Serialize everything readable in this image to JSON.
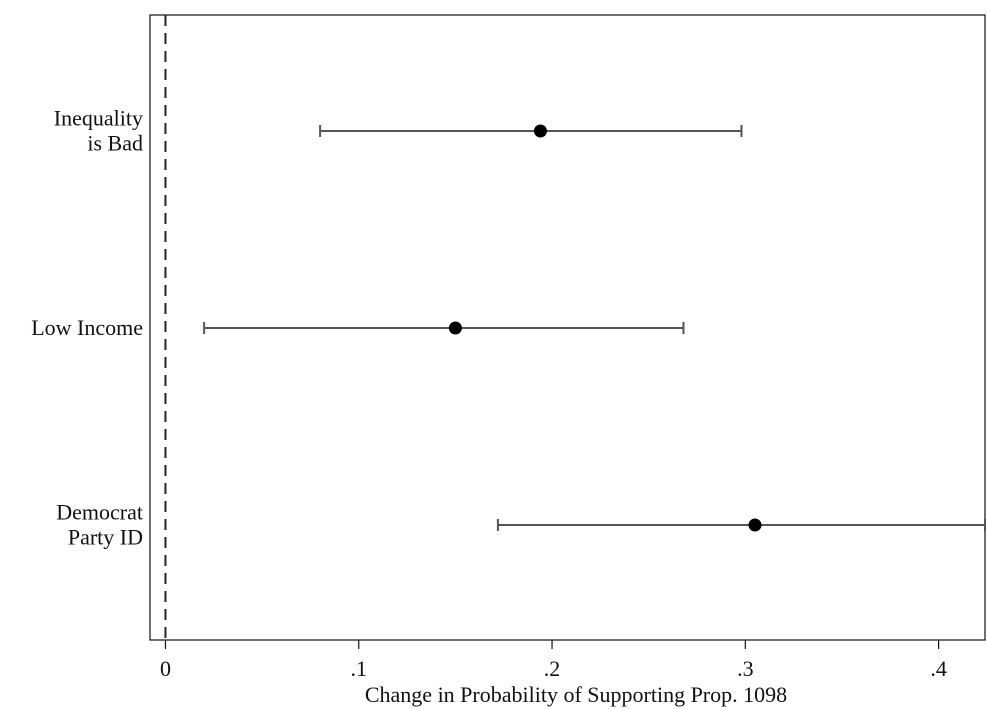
{
  "chart_data": {
    "type": "scatter",
    "subtype": "coefficient-plot",
    "xlabel": "Change in Probability of Supporting Prop. 1098",
    "xlim": [
      -0.008,
      0.424
    ],
    "xticks": [
      {
        "value": 0,
        "label": "0"
      },
      {
        "value": 0.1,
        "label": ".1"
      },
      {
        "value": 0.2,
        "label": ".2"
      },
      {
        "value": 0.3,
        "label": ".3"
      },
      {
        "value": 0.4,
        "label": ".4"
      }
    ],
    "reference_line": {
      "x": 0,
      "style": "dashed"
    },
    "grid": false,
    "legend": "none",
    "categories": [
      {
        "lines": [
          "Inequality",
          "is Bad"
        ],
        "estimate": 0.194,
        "ci_low": 0.08,
        "ci_high": 0.298
      },
      {
        "lines": [
          "Low Income"
        ],
        "estimate": 0.15,
        "ci_low": 0.02,
        "ci_high": 0.268
      },
      {
        "lines": [
          "Democrat",
          "Party ID"
        ],
        "estimate": 0.305,
        "ci_low": 0.172,
        "ci_high": 0.424
      }
    ],
    "colors": {
      "point": "#000000",
      "ci_line": "#555555",
      "axis": "#111111",
      "reference": "#222222"
    }
  }
}
